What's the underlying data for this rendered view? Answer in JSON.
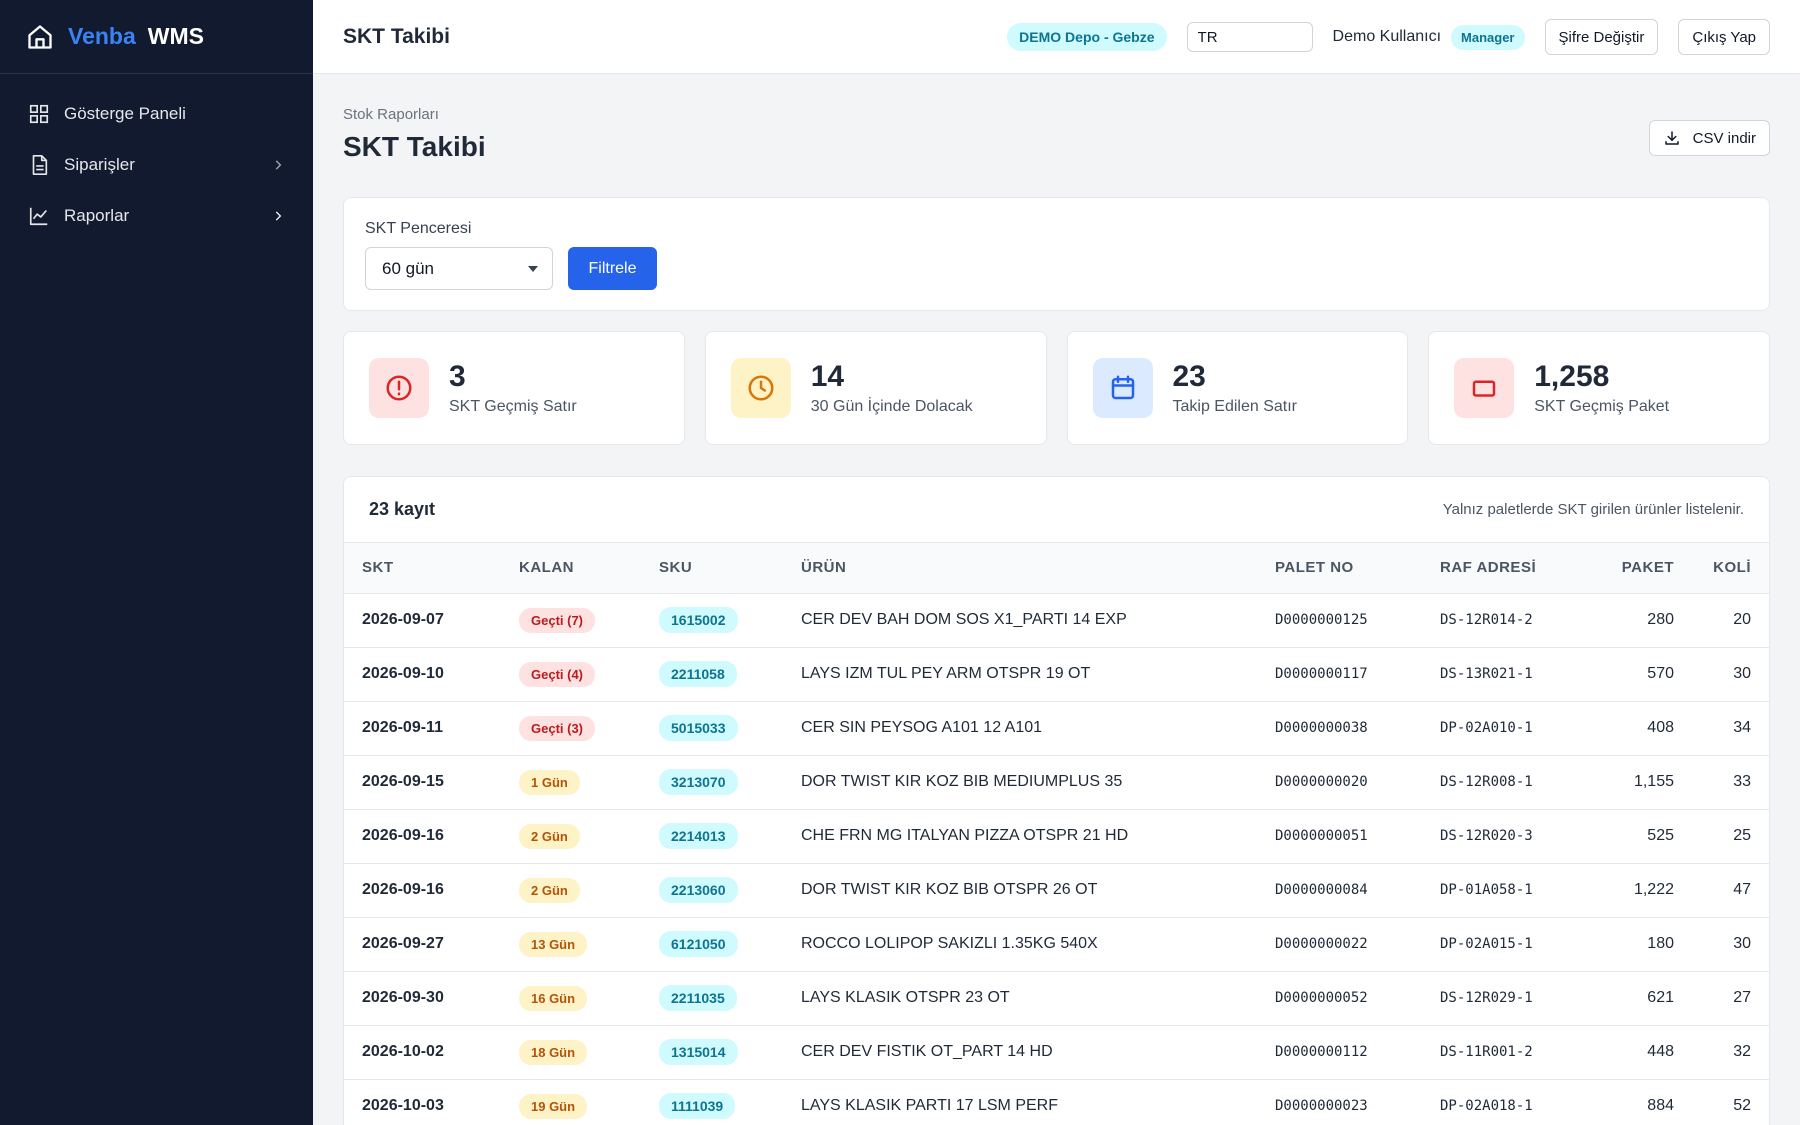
{
  "brand": {
    "name_part1": "Venba",
    "name_part2": "WMS"
  },
  "sidebar": {
    "items": [
      {
        "label": "Gösterge Paneli"
      },
      {
        "label": "Siparişler"
      },
      {
        "label": "Raporlar"
      }
    ]
  },
  "topbar": {
    "title": "SKT Takibi",
    "depot": "DEMO Depo - Gebze",
    "lang_value": "TR",
    "user": "Demo Kullanıcı",
    "role": "Manager",
    "change_password": "Şifre Değiştir",
    "logout": "Çıkış Yap"
  },
  "page": {
    "breadcrumb": "Stok Raporları",
    "title": "SKT Takibi",
    "csv_button": "CSV indir"
  },
  "filter": {
    "label": "SKT Penceresi",
    "selected": "60 gün",
    "button": "Filtrele"
  },
  "stats": [
    {
      "value": "3",
      "label": "SKT Geçmiş Satır",
      "icon": "alert-circle-icon"
    },
    {
      "value": "14",
      "label": "30 Gün İçinde Dolacak",
      "icon": "clock-icon"
    },
    {
      "value": "23",
      "label": "Takip Edilen Satır",
      "icon": "calendar-icon"
    },
    {
      "value": "1,258",
      "label": "SKT Geçmiş Paket",
      "icon": "box-icon"
    }
  ],
  "colors": {
    "accent": "#2563eb",
    "sidebar_bg": "#111a2e",
    "danger": "#b91c1c",
    "warning": "#b45309",
    "info": "#0e7490"
  },
  "table": {
    "count": "23 kayıt",
    "note": "Yalnız paletlerde SKT girilen ürünler listelenir.",
    "headers": {
      "skt": "SKT",
      "kalan": "KALAN",
      "sku": "SKU",
      "urun": "ÜRÜN",
      "palet": "PALET NO",
      "raf": "RAF ADRESİ",
      "paket": "PAKET",
      "koli": "KOLİ"
    },
    "rows": [
      {
        "skt": "2026-09-07",
        "kalan": "Geçti (7)",
        "sku": "1615002",
        "urun": "CER DEV BAH DOM SOS X1_PARTI 14 EXP",
        "palet": "D0000000125",
        "raf": "DS-12R014-2",
        "paket": "280",
        "koli": "20"
      },
      {
        "skt": "2026-09-10",
        "kalan": "Geçti (4)",
        "sku": "2211058",
        "urun": "LAYS IZM TUL PEY ARM OTSPR 19 OT",
        "palet": "D0000000117",
        "raf": "DS-13R021-1",
        "paket": "570",
        "koli": "30"
      },
      {
        "skt": "2026-09-11",
        "kalan": "Geçti (3)",
        "sku": "5015033",
        "urun": "CER SIN PEYSOG A101 12 A101",
        "palet": "D0000000038",
        "raf": "DP-02A010-1",
        "paket": "408",
        "koli": "34"
      },
      {
        "skt": "2026-09-15",
        "kalan": "1 Gün",
        "sku": "3213070",
        "urun": "DOR TWIST KIR KOZ BIB MEDIUMPLUS 35",
        "palet": "D0000000020",
        "raf": "DS-12R008-1",
        "paket": "1,155",
        "koli": "33"
      },
      {
        "skt": "2026-09-16",
        "kalan": "2 Gün",
        "sku": "2214013",
        "urun": "CHE FRN MG ITALYAN PIZZA OTSPR 21 HD",
        "palet": "D0000000051",
        "raf": "DS-12R020-3",
        "paket": "525",
        "koli": "25"
      },
      {
        "skt": "2026-09-16",
        "kalan": "2 Gün",
        "sku": "2213060",
        "urun": "DOR TWIST KIR KOZ BIB OTSPR 26 OT",
        "palet": "D0000000084",
        "raf": "DP-01A058-1",
        "paket": "1,222",
        "koli": "47"
      },
      {
        "skt": "2026-09-27",
        "kalan": "13 Gün",
        "sku": "6121050",
        "urun": "ROCCO LOLIPOP SAKIZLI 1.35KG 540X",
        "palet": "D0000000022",
        "raf": "DP-02A015-1",
        "paket": "180",
        "koli": "30"
      },
      {
        "skt": "2026-09-30",
        "kalan": "16 Gün",
        "sku": "2211035",
        "urun": "LAYS KLASIK OTSPR 23 OT",
        "palet": "D0000000052",
        "raf": "DS-12R029-1",
        "paket": "621",
        "koli": "27"
      },
      {
        "skt": "2026-10-02",
        "kalan": "18 Gün",
        "sku": "1315014",
        "urun": "CER DEV FISTIK OT_PART 14 HD",
        "palet": "D0000000112",
        "raf": "DS-11R001-2",
        "paket": "448",
        "koli": "32"
      },
      {
        "skt": "2026-10-03",
        "kalan": "19 Gün",
        "sku": "1111039",
        "urun": "LAYS KLASIK PARTI 17 LSM PERF",
        "palet": "D0000000023",
        "raf": "DP-02A018-1",
        "paket": "884",
        "koli": "52"
      }
    ]
  }
}
